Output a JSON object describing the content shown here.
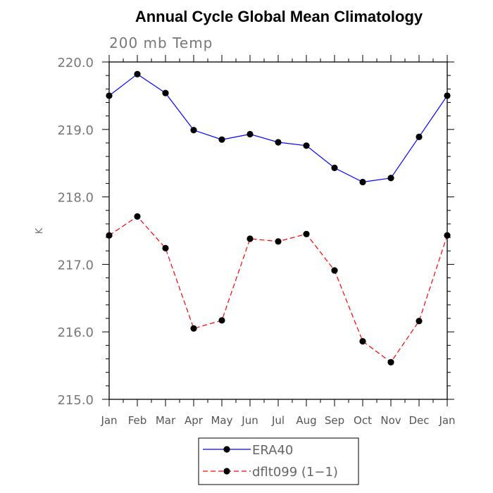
{
  "chart_data": {
    "type": "line",
    "title": "Annual Cycle Global Mean Climatology",
    "subtitle": "200 mb Temp",
    "xlabel": "",
    "ylabel": "K",
    "categories": [
      "Jan",
      "Feb",
      "Mar",
      "Apr",
      "May",
      "Jun",
      "Jul",
      "Aug",
      "Sep",
      "Oct",
      "Nov",
      "Dec",
      "Jan"
    ],
    "ylim": [
      215.0,
      220.0
    ],
    "yticks": [
      "215.0",
      "216.0",
      "217.0",
      "218.0",
      "219.0",
      "220.0"
    ],
    "series": [
      {
        "name": "ERA40",
        "color": "#0000ff",
        "dash": "solid",
        "values": [
          219.5,
          219.82,
          219.54,
          218.99,
          218.85,
          218.93,
          218.81,
          218.76,
          218.43,
          218.22,
          218.28,
          218.89,
          219.5
        ]
      },
      {
        "name": "dflt099 (1−1)",
        "color": "#ff0000",
        "dash": "dashed",
        "values": [
          217.43,
          217.71,
          217.24,
          216.05,
          216.17,
          217.38,
          217.34,
          217.45,
          216.91,
          215.86,
          215.55,
          216.16,
          217.43
        ]
      }
    ],
    "legend_position": "bottom-center"
  }
}
